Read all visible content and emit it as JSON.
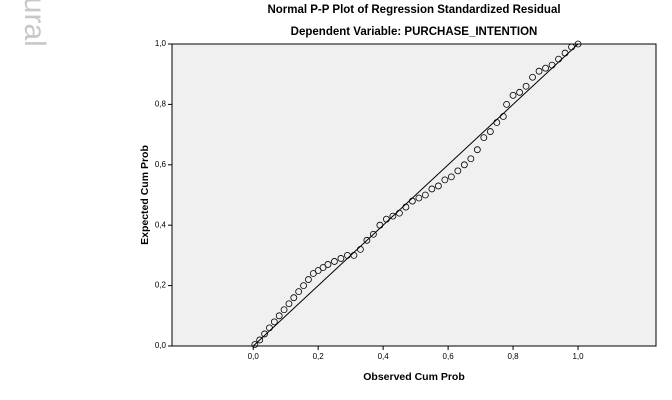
{
  "watermark": "Bogor Agricultural",
  "chart_data": {
    "type": "scatter",
    "title": "Normal P-P Plot of Regression Standardized Residual",
    "subtitle": "Dependent Variable: PURCHASE_INTENTION",
    "x_label": "Observed Cum Prob",
    "y_label": "Expected Cum Prob",
    "x": [
      0.005,
      0.02,
      0.035,
      0.05,
      0.065,
      0.08,
      0.095,
      0.11,
      0.125,
      0.14,
      0.155,
      0.17,
      0.185,
      0.2,
      0.215,
      0.23,
      0.25,
      0.27,
      0.29,
      0.31,
      0.33,
      0.35,
      0.37,
      0.39,
      0.41,
      0.43,
      0.45,
      0.47,
      0.49,
      0.51,
      0.53,
      0.55,
      0.57,
      0.59,
      0.61,
      0.63,
      0.65,
      0.67,
      0.69,
      0.71,
      0.73,
      0.75,
      0.77,
      0.78,
      0.8,
      0.82,
      0.84,
      0.86,
      0.88,
      0.9,
      0.92,
      0.94,
      0.96,
      0.98,
      1.0
    ],
    "values": [
      0.005,
      0.02,
      0.04,
      0.06,
      0.08,
      0.1,
      0.12,
      0.14,
      0.16,
      0.18,
      0.2,
      0.22,
      0.24,
      0.25,
      0.26,
      0.27,
      0.28,
      0.29,
      0.3,
      0.3,
      0.32,
      0.35,
      0.37,
      0.4,
      0.42,
      0.43,
      0.44,
      0.46,
      0.48,
      0.49,
      0.5,
      0.52,
      0.53,
      0.55,
      0.56,
      0.58,
      0.6,
      0.62,
      0.65,
      0.69,
      0.71,
      0.74,
      0.76,
      0.8,
      0.83,
      0.84,
      0.86,
      0.89,
      0.91,
      0.92,
      0.93,
      0.95,
      0.97,
      0.99,
      1.0
    ],
    "color": "#000000",
    "xlim": [
      -0.25,
      1.24
    ],
    "ylim": [
      0,
      1
    ],
    "xticks": [
      {
        "value": 0,
        "label": "0,0"
      },
      {
        "value": 0.2,
        "label": "0,2"
      },
      {
        "value": 0.4,
        "label": "0,4"
      },
      {
        "value": 0.6,
        "label": "0,6"
      },
      {
        "value": 0.8,
        "label": "0,8"
      },
      {
        "value": 1,
        "label": "1,0"
      }
    ],
    "yticks": [
      {
        "value": 0,
        "label": "0,0"
      },
      {
        "value": 0.2,
        "label": "0,2"
      },
      {
        "value": 0.4,
        "label": "0,4"
      },
      {
        "value": 0.6,
        "label": "0,6"
      },
      {
        "value": 0.8,
        "label": "0,8"
      },
      {
        "value": 1,
        "label": "1,0"
      }
    ],
    "grid": false
  }
}
